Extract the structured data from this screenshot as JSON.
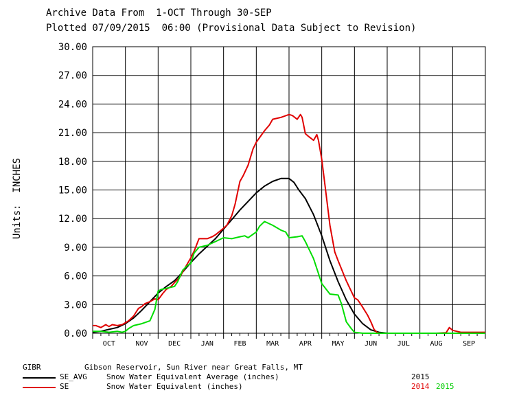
{
  "header": {
    "line1": "Archive Data From  1-OCT Through 30-SEP",
    "line2": "Plotted 07/09/2015  06:00 (Provisional Data Subject to Revision)"
  },
  "colors": {
    "black": "#000000",
    "red": "#e00000",
    "green": "#00dd00",
    "grid": "#000000"
  },
  "chart_data": {
    "type": "line",
    "ylabel": "Units:  INCHES",
    "ylim": [
      0,
      30
    ],
    "yticks": [
      "0.00",
      "3.00",
      "6.00",
      "9.00",
      "12.00",
      "15.00",
      "18.00",
      "21.00",
      "24.00",
      "27.00",
      "30.00"
    ],
    "xlim": [
      0,
      12
    ],
    "categories": [
      "OCT",
      "NOV",
      "DEC",
      "JAN",
      "FEB",
      "MAR",
      "APR",
      "MAY",
      "JUN",
      "JUL",
      "AUG",
      "SEP"
    ],
    "grid": true,
    "series": [
      {
        "name": "SE_AVG",
        "label": "Snow Water Equivalent Average (inches)",
        "year": "2015",
        "color": "#000000",
        "x": [
          0,
          0.25,
          0.5,
          0.75,
          1.0,
          1.25,
          1.5,
          1.75,
          2.0,
          2.25,
          2.5,
          2.75,
          3.0,
          3.25,
          3.5,
          3.75,
          4.0,
          4.25,
          4.5,
          4.75,
          5.0,
          5.25,
          5.5,
          5.75,
          6.0,
          6.15,
          6.3,
          6.5,
          6.75,
          7.0,
          7.25,
          7.5,
          7.75,
          8.0,
          8.25,
          8.5,
          8.75,
          9.0,
          9.25,
          9.5,
          10,
          11,
          12
        ],
        "y": [
          0.1,
          0.2,
          0.4,
          0.6,
          1.0,
          1.6,
          2.4,
          3.3,
          4.2,
          4.9,
          5.5,
          6.4,
          7.4,
          8.3,
          9.1,
          9.9,
          10.9,
          11.9,
          12.9,
          13.8,
          14.7,
          15.4,
          15.9,
          16.2,
          16.2,
          15.8,
          15.0,
          14.1,
          12.4,
          10.2,
          7.6,
          5.4,
          3.5,
          2.0,
          1.0,
          0.35,
          0.1,
          0.0,
          0.0,
          0.0,
          0.0,
          0.0,
          0.0
        ]
      },
      {
        "name": "SE",
        "label": "Snow Water Equivalent (inches)",
        "year": "2014",
        "color": "#e00000",
        "x": [
          0,
          0.1,
          0.25,
          0.4,
          0.5,
          0.6,
          0.75,
          0.9,
          1.0,
          1.1,
          1.25,
          1.4,
          1.5,
          1.6,
          1.75,
          1.9,
          2.0,
          2.15,
          2.25,
          2.4,
          2.5,
          2.65,
          2.75,
          2.9,
          3.0,
          3.1,
          3.25,
          3.5,
          3.65,
          3.75,
          4.0,
          4.1,
          4.25,
          4.35,
          4.5,
          4.6,
          4.75,
          4.9,
          5.0,
          5.25,
          5.4,
          5.5,
          5.75,
          6.0,
          6.1,
          6.25,
          6.35,
          6.4,
          6.5,
          6.6,
          6.75,
          6.85,
          6.9,
          7.0,
          7.1,
          7.25,
          7.4,
          7.5,
          7.75,
          8.0,
          8.1,
          8.2,
          8.4,
          8.5,
          8.6,
          8.7,
          8.8,
          9.0,
          9.5,
          10.0,
          10.5,
          10.8,
          10.9,
          11.0,
          11.25,
          11.5,
          12.0
        ],
        "y": [
          0.8,
          0.8,
          0.6,
          0.9,
          0.7,
          0.9,
          0.8,
          0.9,
          1.1,
          1.3,
          1.8,
          2.6,
          2.8,
          3.1,
          3.3,
          3.6,
          3.5,
          4.2,
          4.6,
          4.9,
          5.3,
          5.8,
          6.4,
          7.3,
          7.9,
          8.6,
          9.9,
          9.9,
          10.1,
          10.3,
          11.0,
          11.3,
          12.3,
          13.5,
          15.9,
          16.5,
          17.6,
          19.3,
          20.0,
          21.2,
          21.8,
          22.4,
          22.6,
          22.9,
          22.8,
          22.4,
          22.9,
          22.6,
          20.9,
          20.6,
          20.2,
          20.8,
          20.2,
          18.2,
          15.5,
          11.3,
          8.5,
          7.6,
          5.5,
          3.7,
          3.5,
          3.0,
          1.9,
          1.2,
          0.4,
          0.05,
          0.0,
          0.0,
          0.0,
          0.0,
          0.0,
          0.05,
          0.6,
          0.3,
          0.1,
          0.1,
          0.1
        ]
      },
      {
        "name": "SE",
        "label": "Snow Water Equivalent (inches)",
        "year": "2015",
        "color": "#00dd00",
        "x": [
          0,
          0.25,
          0.5,
          0.75,
          0.9,
          1.0,
          1.1,
          1.25,
          1.5,
          1.75,
          1.9,
          2.0,
          2.1,
          2.25,
          2.5,
          2.6,
          2.75,
          2.9,
          3.0,
          3.1,
          3.25,
          3.5,
          3.75,
          4.0,
          4.25,
          4.5,
          4.65,
          4.75,
          5.0,
          5.1,
          5.25,
          5.5,
          5.75,
          5.9,
          6.0,
          6.25,
          6.4,
          6.5,
          6.75,
          7.0,
          7.25,
          7.5,
          7.6,
          7.75,
          7.9,
          8.0,
          8.25,
          9.0,
          10,
          11,
          12
        ],
        "y": [
          0.2,
          0.2,
          0.1,
          0.2,
          0.1,
          0.2,
          0.5,
          0.8,
          1.0,
          1.3,
          2.5,
          4.4,
          4.6,
          4.7,
          4.9,
          5.4,
          6.6,
          7.1,
          7.3,
          8.4,
          9.0,
          9.2,
          9.6,
          10.0,
          9.9,
          10.1,
          10.2,
          10.0,
          10.6,
          11.2,
          11.7,
          11.3,
          10.8,
          10.6,
          10.0,
          10.1,
          10.2,
          9.6,
          7.8,
          5.2,
          4.1,
          4.0,
          3.1,
          1.2,
          0.5,
          0.1,
          0.0,
          0.0,
          0.0,
          0.0,
          0.0
        ]
      }
    ]
  },
  "legend": {
    "site_code": "GIBR",
    "site_name": "Gibson Reservoir, Sun River near Great Falls, MT",
    "rows": [
      {
        "code": "SE_AVG",
        "desc": "Snow Water Equivalent Average (inches)",
        "years": [
          {
            "text": "2015",
            "color": "#000000"
          }
        ]
      },
      {
        "code": "SE",
        "desc": "Snow Water Equivalent (inches)",
        "years": [
          {
            "text": "2014",
            "color": "#e00000"
          },
          {
            "text": "2015",
            "color": "#00dd00"
          }
        ]
      }
    ]
  }
}
